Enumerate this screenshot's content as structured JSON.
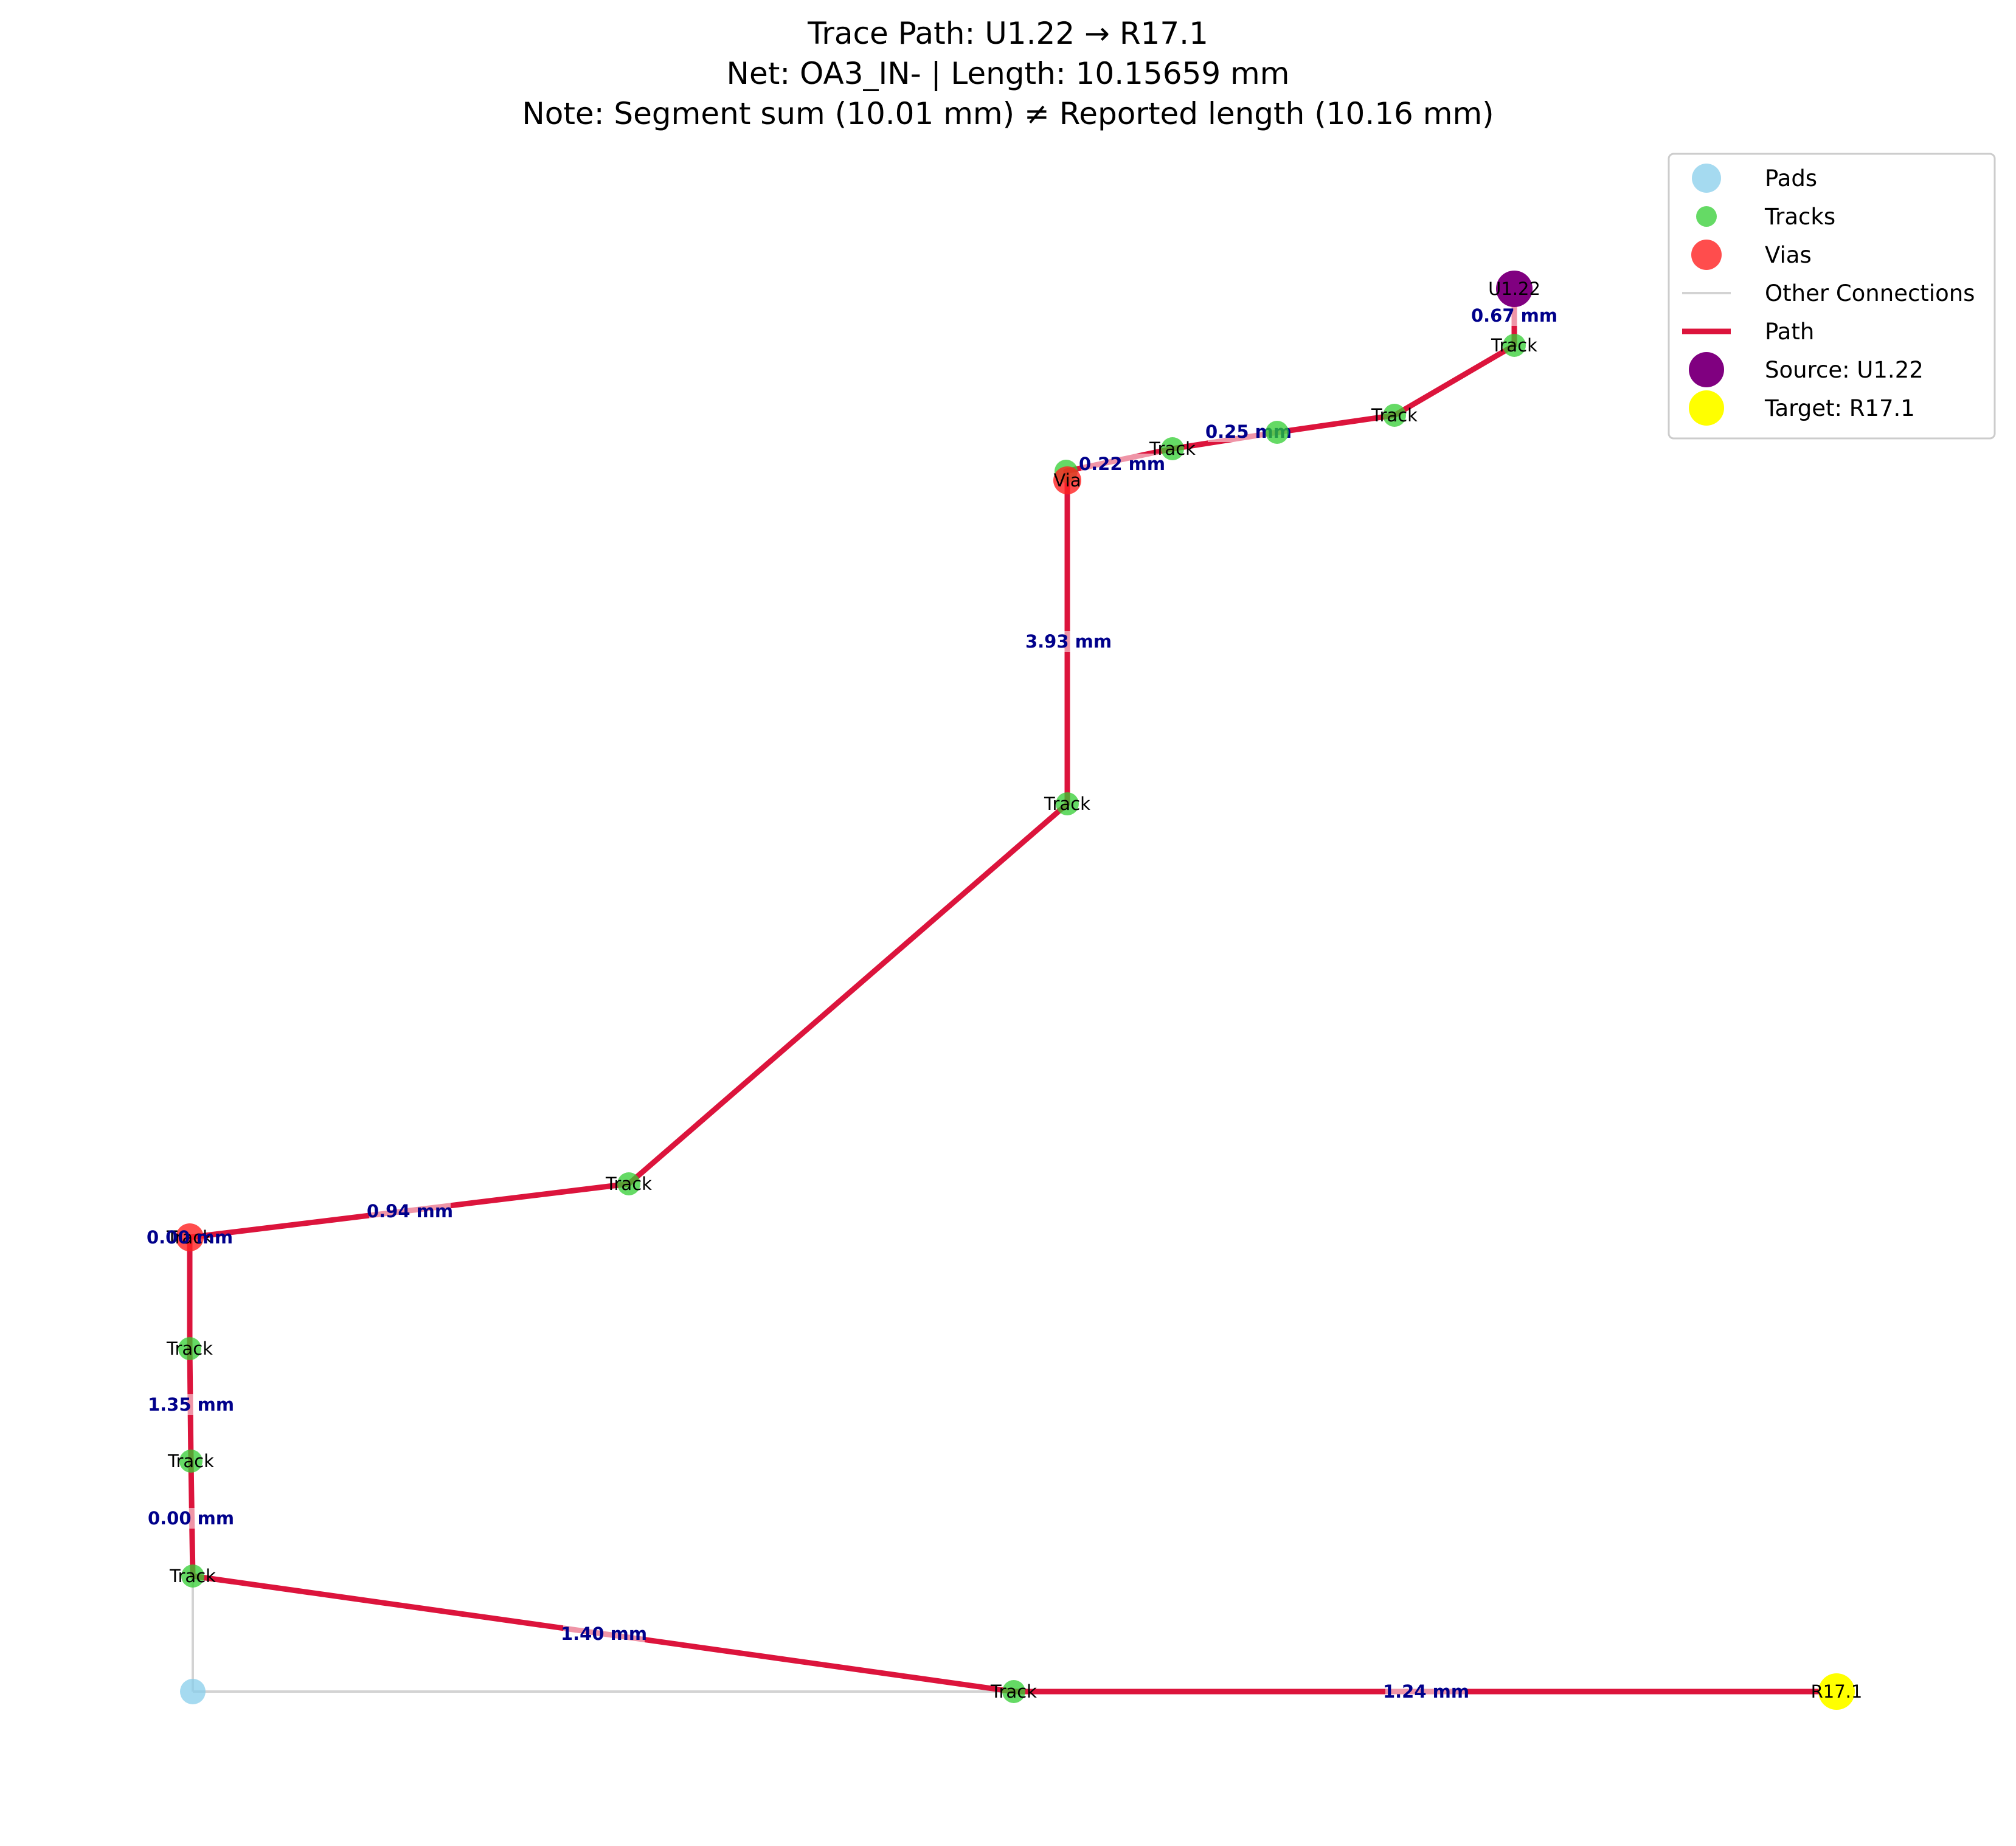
{
  "title": {
    "line1": "Trace Path: U1.22 → R17.1",
    "line2": "Net: OA3_IN- | Length: 10.15659 mm",
    "line3": "Note: Segment sum (10.01 mm) ≠ Reported length (10.16 mm)"
  },
  "colors": {
    "pad": "#87ceeb",
    "track": "#32cd32",
    "via": "#ff2020",
    "path": "#dc143c",
    "path_label_bg": "#f4b6c2",
    "other": "#d3d3d3",
    "source": "#800080",
    "target": "#ffff00",
    "edge_label": "#00008b"
  },
  "legend": {
    "items": [
      {
        "key": "pads",
        "label": "Pads",
        "kind": "pad"
      },
      {
        "key": "tracks",
        "label": "Tracks",
        "kind": "track"
      },
      {
        "key": "vias",
        "label": "Vias",
        "kind": "via"
      },
      {
        "key": "other",
        "label": "Other Connections",
        "kind": "other"
      },
      {
        "key": "path",
        "label": "Path",
        "kind": "path"
      },
      {
        "key": "source",
        "label": "Source: U1.22",
        "kind": "source"
      },
      {
        "key": "target",
        "label": "Target: R17.1",
        "kind": "target"
      }
    ]
  },
  "nodes": [
    {
      "id": "u1",
      "kind": "source",
      "label": "U1.22"
    },
    {
      "id": "t1",
      "kind": "track",
      "label": "Track"
    },
    {
      "id": "t2",
      "kind": "track",
      "label": "Track"
    },
    {
      "id": "t3",
      "kind": "track",
      "label": ""
    },
    {
      "id": "t4",
      "kind": "track",
      "label": "Track"
    },
    {
      "id": "t4b",
      "kind": "track",
      "label": ""
    },
    {
      "id": "v1",
      "kind": "via",
      "label": "Via"
    },
    {
      "id": "t5",
      "kind": "track",
      "label": "Track"
    },
    {
      "id": "t6",
      "kind": "track",
      "label": "Track"
    },
    {
      "id": "v2",
      "kind": "via",
      "label": "Track"
    },
    {
      "id": "t7",
      "kind": "track",
      "label": "Track"
    },
    {
      "id": "t8",
      "kind": "track",
      "label": "Track"
    },
    {
      "id": "t9",
      "kind": "track",
      "label": "Track"
    },
    {
      "id": "pad",
      "kind": "pad",
      "label": ""
    },
    {
      "id": "t10",
      "kind": "track",
      "label": "Track"
    },
    {
      "id": "r17",
      "kind": "target",
      "label": "R17.1"
    }
  ],
  "path_edges": [
    {
      "from": "u1",
      "to": "t1",
      "label": "0.67 mm"
    },
    {
      "from": "t1",
      "to": "t2",
      "label": ""
    },
    {
      "from": "t2",
      "to": "t3",
      "label": ""
    },
    {
      "from": "t3",
      "to": "t4",
      "label": "0.25 mm"
    },
    {
      "from": "t4",
      "to": "t4b",
      "label": ""
    },
    {
      "from": "t4b",
      "to": "v1",
      "label": "0.22 mm"
    },
    {
      "from": "v1",
      "to": "t5",
      "label": "3.93 mm"
    },
    {
      "from": "t5",
      "to": "t6",
      "label": ""
    },
    {
      "from": "t6",
      "to": "v2",
      "label": "0.94 mm"
    },
    {
      "from": "v2",
      "to": "t7",
      "label": ""
    },
    {
      "from": "t7",
      "to": "t8",
      "label": "1.35 mm"
    },
    {
      "from": "t8",
      "to": "t9",
      "label": "0.00 mm"
    },
    {
      "from": "t9",
      "to": "t10",
      "label": "1.40 mm"
    },
    {
      "from": "t10",
      "to": "r17",
      "label": "1.24 mm"
    }
  ],
  "other_edges": [
    {
      "from": "t9",
      "to": "pad"
    },
    {
      "from": "pad",
      "to": "t10"
    }
  ],
  "overlap_label": "0.00 mm"
}
